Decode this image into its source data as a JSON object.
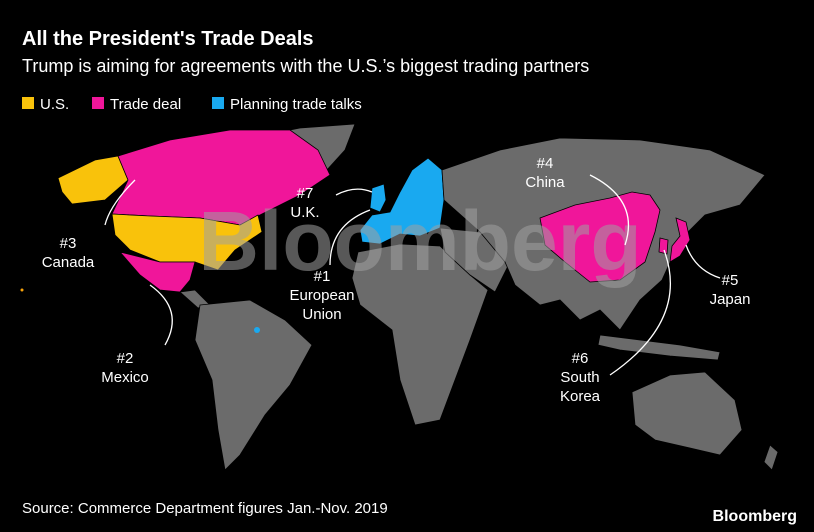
{
  "header": {
    "title": "All the President's Trade Deals",
    "subtitle": "Trump is aiming for agreements with the U.S.’s biggest trading partners"
  },
  "legend": [
    {
      "label": "U.S.",
      "color": "#f9c20b"
    },
    {
      "label": "Trade deal",
      "color": "#f0169a"
    },
    {
      "label": "Planning trade talks",
      "color": "#19a9f0"
    }
  ],
  "annotations": [
    {
      "lines": [
        "#7",
        "U.K."
      ]
    },
    {
      "lines": [
        "#4",
        "China"
      ]
    },
    {
      "lines": [
        "#3",
        "Canada"
      ]
    },
    {
      "lines": [
        "#1",
        "European",
        "Union"
      ]
    },
    {
      "lines": [
        "#5",
        "Japan"
      ]
    },
    {
      "lines": [
        "#2",
        "Mexico"
      ]
    },
    {
      "lines": [
        "#6",
        "South",
        "Korea"
      ]
    }
  ],
  "watermark": "Bloomberg",
  "footer": {
    "source": "Source: Commerce Department figures Jan.-Nov. 2019",
    "logo": "Bloomberg"
  }
}
